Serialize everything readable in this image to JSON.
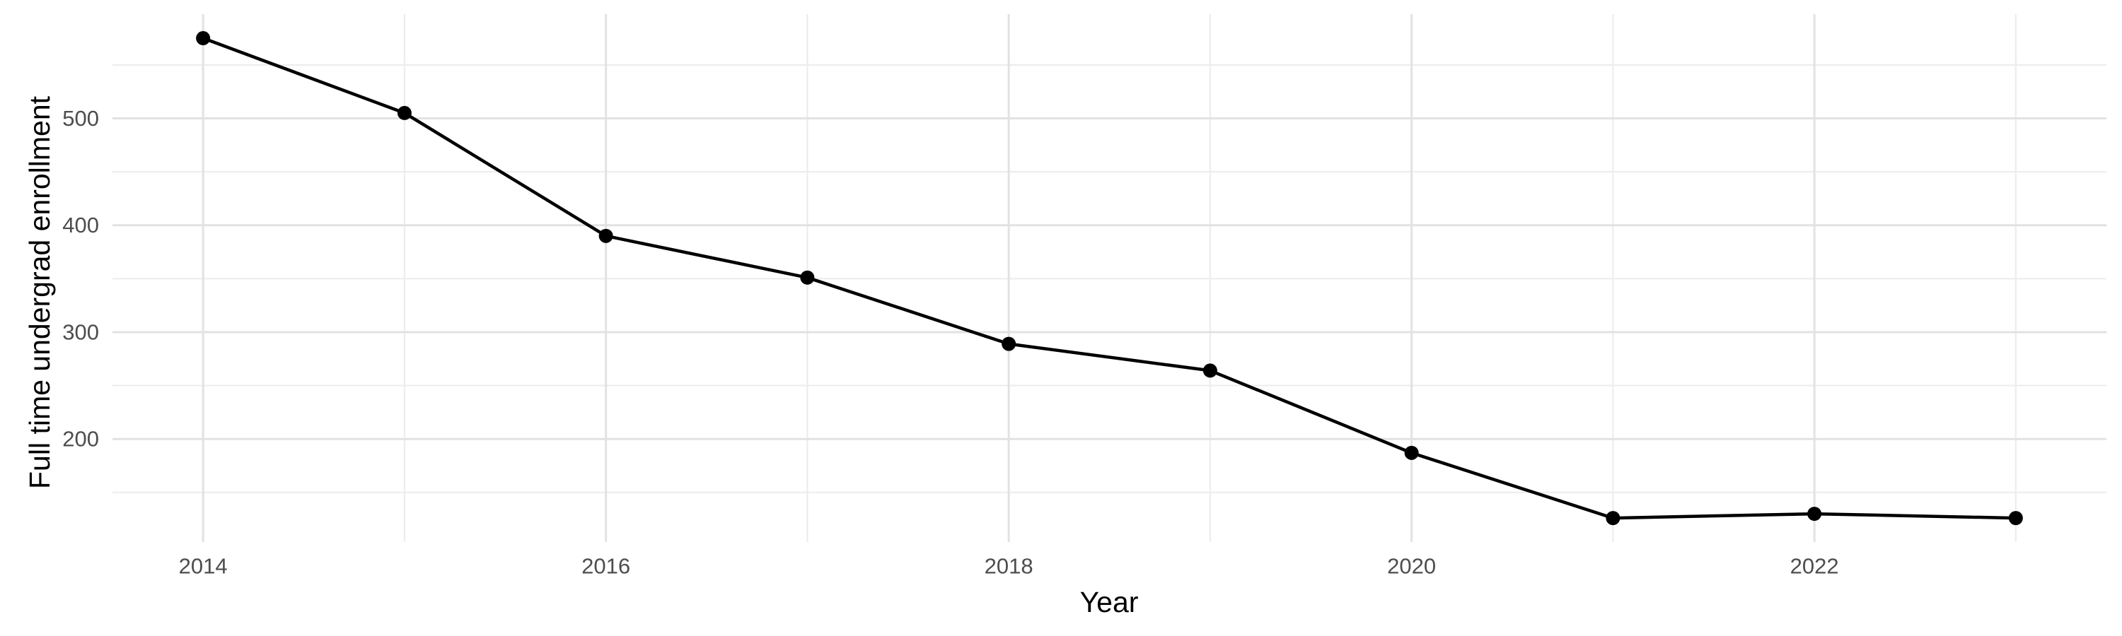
{
  "figure": {
    "background": "#FFFFFF",
    "kind": "line chart"
  },
  "chart_data": {
    "type": "line",
    "title": "",
    "xlabel": "Year",
    "ylabel": "Full time undergrad enrollment",
    "x": [
      2014,
      2015,
      2016,
      2017,
      2018,
      2019,
      2020,
      2021,
      2022,
      2023
    ],
    "series": [
      {
        "name": "Full time undergrad enrollment",
        "values": [
          575,
          505,
          390,
          351,
          289,
          264,
          187,
          126,
          130,
          126
        ]
      }
    ],
    "x_tick_labels": [
      "2014",
      "2016",
      "2018",
      "2020",
      "2022"
    ],
    "x_major_ticks": [
      2014,
      2016,
      2018,
      2020,
      2022
    ],
    "x_minor_ticks": [
      2015,
      2017,
      2019,
      2021,
      2023
    ],
    "y_tick_labels": [
      "200",
      "300",
      "400",
      "500"
    ],
    "y_major_ticks": [
      200,
      300,
      400,
      500
    ],
    "y_minor_ticks": [
      150,
      250,
      350,
      450,
      550
    ],
    "xlim": [
      2013.55,
      2023.45
    ],
    "ylim": [
      103.6,
      597.5
    ],
    "grid": "major and minor, light grey on white",
    "legend_position": "none",
    "marker": "filled circle",
    "colors": {
      "line": "#000000",
      "point": "#000000",
      "grid_major": "#E2E2E2",
      "grid_minor": "#EDEDED",
      "tick_text": "#4D4D4D",
      "axis_title_text": "#000000",
      "background": "#FFFFFF"
    }
  }
}
